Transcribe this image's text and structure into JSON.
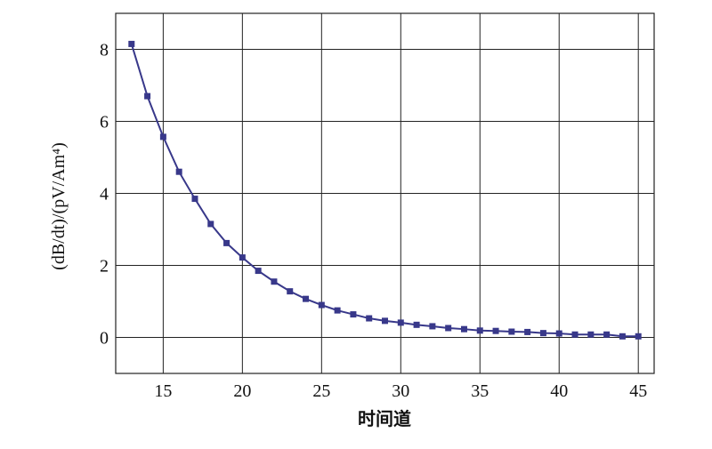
{
  "chart_data": {
    "type": "line",
    "x_label": "时间道",
    "y_label": "(dB/dt)/(pV/Am⁴)",
    "x": [
      13,
      14,
      15,
      16,
      17,
      18,
      19,
      20,
      21,
      22,
      23,
      24,
      25,
      26,
      27,
      28,
      29,
      30,
      31,
      32,
      33,
      34,
      35,
      36,
      37,
      38,
      39,
      40,
      41,
      42,
      43,
      44,
      45
    ],
    "series": [
      {
        "color": "#38388a",
        "values": [
          8.15,
          6.7,
          5.57,
          4.6,
          3.85,
          3.15,
          2.62,
          2.22,
          1.85,
          1.55,
          1.28,
          1.07,
          0.9,
          0.75,
          0.64,
          0.53,
          0.46,
          0.41,
          0.35,
          0.31,
          0.26,
          0.23,
          0.19,
          0.18,
          0.16,
          0.15,
          0.12,
          0.11,
          0.08,
          0.08,
          0.08,
          0.03,
          0.03
        ]
      }
    ],
    "xlim": [
      12,
      46
    ],
    "ylim": [
      -1,
      9
    ],
    "xticks": [
      15,
      20,
      25,
      30,
      35,
      40,
      45
    ],
    "yticks": [
      0,
      2,
      4,
      6,
      8
    ],
    "grid": true
  }
}
